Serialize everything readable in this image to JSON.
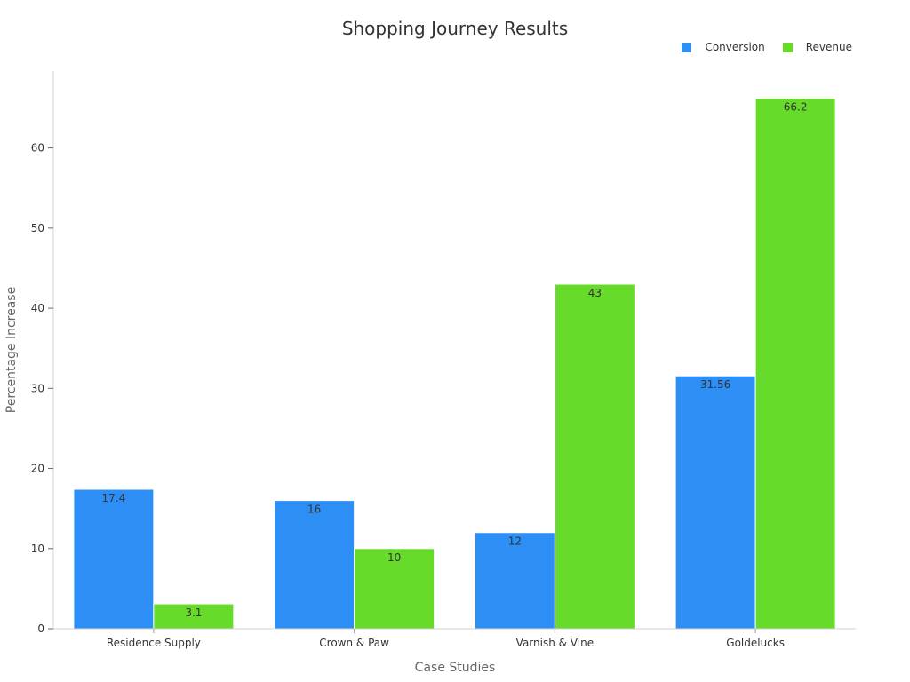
{
  "chart_data": {
    "type": "bar",
    "title": "Shopping Journey Results",
    "xlabel": "Case Studies",
    "ylabel": "Percentage Increase",
    "categories": [
      "Residence Supply",
      "Crown & Paw",
      "Varnish & Vine",
      "Goldelucks"
    ],
    "series": [
      {
        "name": "Conversion",
        "color": "#2d8ff5",
        "values": [
          17.4,
          16,
          12,
          31.56
        ]
      },
      {
        "name": "Revenue",
        "color": "#67db2a",
        "values": [
          3.1,
          10,
          43,
          66.2
        ]
      }
    ],
    "yticks": [
      0,
      10,
      20,
      30,
      40,
      50,
      60
    ],
    "ylim": [
      0,
      69.6
    ],
    "grid": false,
    "legend_position": "top-right",
    "data_labels": true
  },
  "legend": {
    "items": [
      {
        "label": "Conversion",
        "color": "#2d8ff5"
      },
      {
        "label": "Revenue",
        "color": "#67db2a"
      }
    ]
  }
}
